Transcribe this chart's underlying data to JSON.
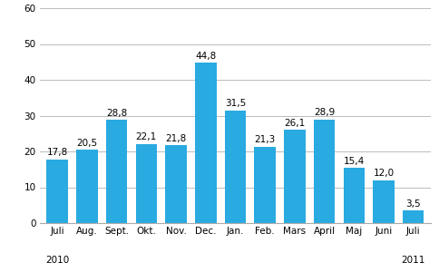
{
  "categories": [
    "Juli",
    "Aug.",
    "Sept.",
    "Okt.",
    "Nov.",
    "Dec.",
    "Jan.",
    "Feb.",
    "Mars",
    "April",
    "Maj",
    "Juni",
    "Juli"
  ],
  "values": [
    17.8,
    20.5,
    28.8,
    22.1,
    21.8,
    44.8,
    31.5,
    21.3,
    26.1,
    28.9,
    15.4,
    12.0,
    3.5
  ],
  "bar_color": "#29aae1",
  "ylim": [
    0,
    60
  ],
  "yticks": [
    0,
    10,
    20,
    30,
    40,
    50,
    60
  ],
  "year_labels": [
    [
      "2010",
      0
    ],
    [
      "2011",
      12
    ]
  ],
  "label_fontsize": 7.5,
  "value_fontsize": 7.5,
  "tick_fontsize": 7.5,
  "year_fontsize": 7.5,
  "background_color": "#ffffff",
  "grid_color": "#bbbbbb"
}
